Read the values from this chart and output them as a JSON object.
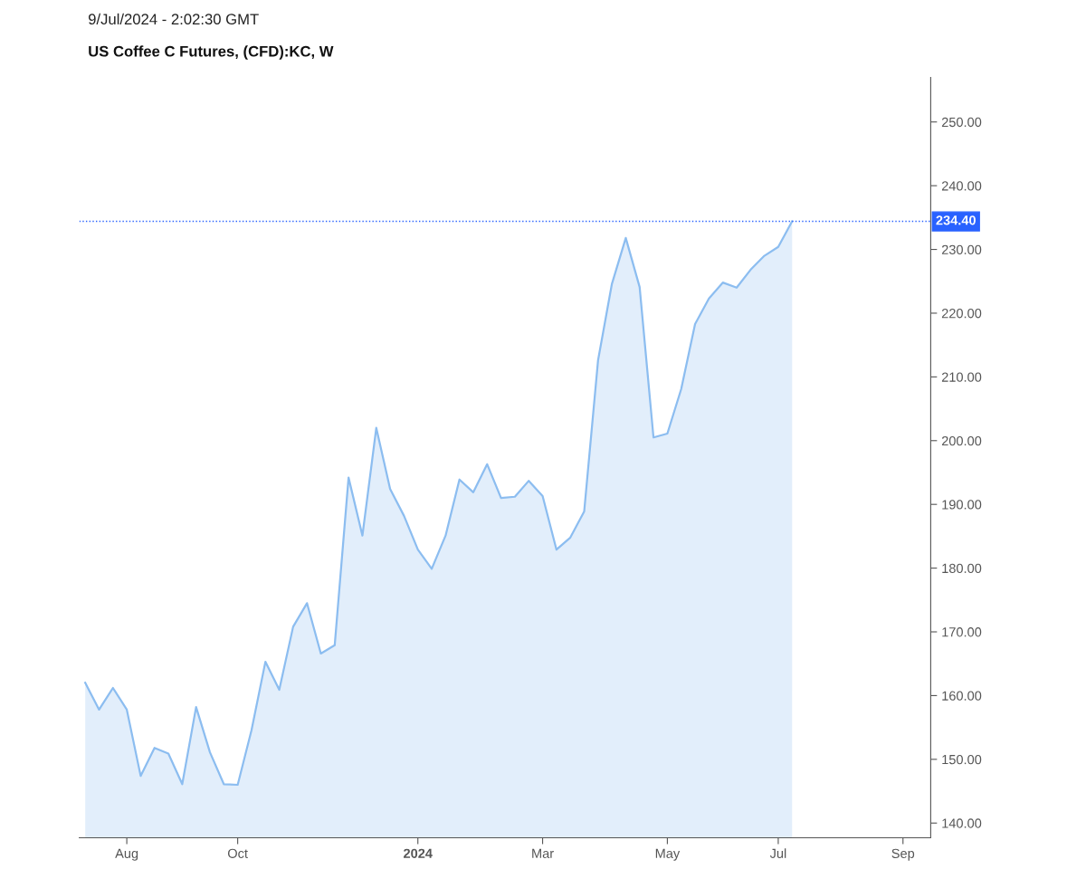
{
  "chart_data": {
    "type": "area",
    "title": "US Coffee C Futures, (CFD):KC, W",
    "annotations": [
      "9/Jul/2024 - 2:02:30 GMT"
    ],
    "x": [
      "2023-07-17",
      "2023-07-24",
      "2023-07-31",
      "2023-08-07",
      "2023-08-14",
      "2023-08-21",
      "2023-08-28",
      "2023-09-04",
      "2023-09-11",
      "2023-09-18",
      "2023-09-25",
      "2023-10-02",
      "2023-10-09",
      "2023-10-16",
      "2023-10-23",
      "2023-10-30",
      "2023-11-06",
      "2023-11-13",
      "2023-11-20",
      "2023-11-27",
      "2023-12-04",
      "2023-12-11",
      "2023-12-18",
      "2023-12-25",
      "2024-01-01",
      "2024-01-08",
      "2024-01-15",
      "2024-01-22",
      "2024-01-29",
      "2024-02-05",
      "2024-02-12",
      "2024-02-19",
      "2024-02-26",
      "2024-03-04",
      "2024-03-11",
      "2024-03-18",
      "2024-03-25",
      "2024-04-01",
      "2024-04-08",
      "2024-04-15",
      "2024-04-22",
      "2024-04-29",
      "2024-05-06",
      "2024-05-13",
      "2024-05-20",
      "2024-05-27",
      "2024-06-03",
      "2024-06-10",
      "2024-06-17",
      "2024-06-24",
      "2024-07-01",
      "2024-07-08"
    ],
    "series": [
      {
        "color": "#8cbdf0",
        "values": [
          162.0,
          157.8,
          161.2,
          157.8,
          147.4,
          151.8,
          150.9,
          146.1,
          158.2,
          151.1,
          146.1,
          146.0,
          154.6,
          165.3,
          160.9,
          170.8,
          174.5,
          166.6,
          167.9,
          194.2,
          185.1,
          202.0,
          192.4,
          188.2,
          182.9,
          179.9,
          185.1,
          193.9,
          191.9,
          196.3,
          191.0,
          191.2,
          193.7,
          191.3,
          182.9,
          184.8,
          188.9,
          212.6,
          224.6,
          231.8,
          224.1,
          200.5,
          201.1,
          208.1,
          218.3,
          222.3,
          224.8,
          224.0,
          226.8,
          229.0,
          230.4,
          234.4
        ]
      }
    ],
    "xlim": [
      "2023-07-14",
      "2024-09-16"
    ],
    "xticks": [
      {
        "value": "2023-08-07",
        "label": "Aug"
      },
      {
        "value": "2023-10-02",
        "label": "Oct"
      },
      {
        "value": "2024-01-01",
        "label": "2024"
      },
      {
        "value": "2024-03-04",
        "label": "Mar"
      },
      {
        "value": "2024-05-06",
        "label": "May"
      },
      {
        "value": "2024-07-01",
        "label": "Jul"
      },
      {
        "value": "2024-09-02",
        "label": "Sep"
      }
    ],
    "ylim": [
      137.7,
      257
    ],
    "yticks": [
      {
        "value": 140,
        "label": "140.00"
      },
      {
        "value": 150,
        "label": "150.00"
      },
      {
        "value": 160,
        "label": "160.00"
      },
      {
        "value": 170,
        "label": "170.00"
      },
      {
        "value": 180,
        "label": "180.00"
      },
      {
        "value": 190,
        "label": "190.00"
      },
      {
        "value": 200,
        "label": "200.00"
      },
      {
        "value": 210,
        "label": "210.00"
      },
      {
        "value": 220,
        "label": "220.00"
      },
      {
        "value": 230,
        "label": "230.00"
      },
      {
        "value": 240,
        "label": "240.00"
      },
      {
        "value": 250,
        "label": "250.00"
      }
    ],
    "ref_lines": [
      {
        "axis": "y",
        "value": 234.4,
        "label": "234.40",
        "color": "#2962ff",
        "line_style": "dotted"
      }
    ],
    "grid": false
  }
}
